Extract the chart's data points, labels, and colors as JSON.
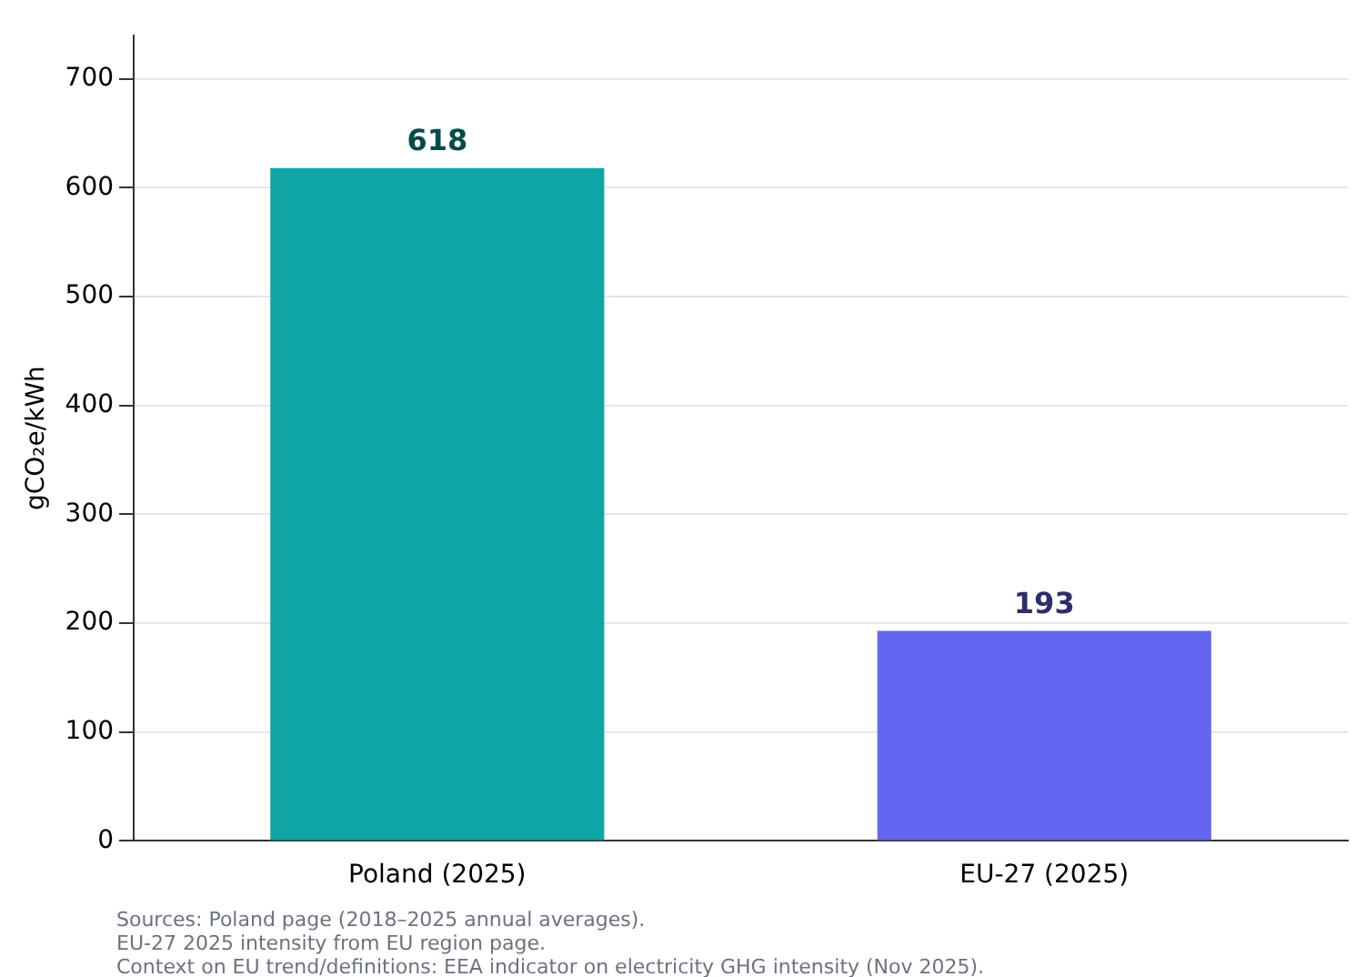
{
  "chart_data": {
    "type": "bar",
    "ylabel": "gCO₂e/kWh",
    "categories": [
      "Poland (2025)",
      "EU-27 (2025)"
    ],
    "values": [
      618,
      193
    ],
    "colors": [
      "#10a5a5",
      "#6366f1"
    ],
    "ylim": [
      0,
      740
    ],
    "yticks": [
      0,
      100,
      200,
      300,
      400,
      500,
      600,
      700
    ],
    "grid": "y",
    "legend": false,
    "data_labels": true,
    "annotations": [
      "Sources: Poland page (2018–2025 annual averages).",
      "EU-27 2025 intensity from EU region page.",
      "Context on EU trend/definitions: EEA indicator on electricity GHG intensity (Nov 2025)."
    ]
  }
}
